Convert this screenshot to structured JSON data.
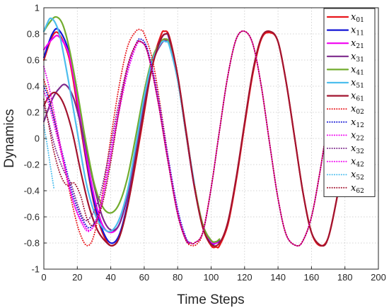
{
  "chart_data": {
    "type": "line",
    "title": "",
    "xlabel": "Time Steps",
    "ylabel": "Dynamics",
    "xlim": [
      0,
      200
    ],
    "ylim": [
      -1,
      1
    ],
    "xticks": [
      0,
      20,
      40,
      60,
      80,
      100,
      120,
      140,
      160,
      180,
      200
    ],
    "yticks": [
      -1,
      -0.8,
      -0.6,
      -0.4,
      -0.2,
      0,
      0.2,
      0.4,
      0.6,
      0.8,
      1
    ],
    "xtick_labels": [
      "0",
      "20",
      "40",
      "60",
      "80",
      "100",
      "120",
      "140",
      "160",
      "180",
      "200"
    ],
    "ytick_labels": [
      "-1",
      "-0.8",
      "-0.6",
      "-0.4",
      "-0.2",
      "0",
      "0.2",
      "0.4",
      "0.6",
      "0.8",
      "1"
    ],
    "grid": true,
    "legend_position": "top-right",
    "series": [
      {
        "name": "x01",
        "base": "x",
        "sub": "01",
        "color": "#e8161b",
        "style": "solid",
        "x": [
          0,
          5,
          9,
          15,
          20,
          25,
          30,
          35,
          40,
          45,
          50,
          55,
          60,
          65,
          70,
          72,
          75,
          80,
          85,
          90,
          95,
          100,
          103,
          105,
          110,
          115,
          120,
          125,
          130,
          135,
          140,
          145,
          150,
          155,
          160,
          165,
          170,
          175,
          180
        ],
        "y": [
          0.6,
          0.78,
          0.8,
          0.62,
          0.25,
          -0.15,
          -0.5,
          -0.72,
          -0.82,
          -0.76,
          -0.52,
          -0.18,
          0.2,
          0.58,
          0.79,
          0.82,
          0.78,
          0.48,
          0.06,
          -0.36,
          -0.68,
          -0.82,
          -0.83,
          -0.82,
          -0.66,
          -0.32,
          0.1,
          0.5,
          0.76,
          0.81,
          0.74,
          0.42,
          0.0,
          -0.42,
          -0.72,
          -0.82,
          -0.76,
          -0.47,
          -0.1
        ]
      },
      {
        "name": "x11",
        "base": "x",
        "sub": "11",
        "color": "#1316d6",
        "style": "solid",
        "x": [
          0,
          5,
          9,
          15,
          20,
          25,
          30,
          35,
          40,
          45,
          50,
          55,
          60,
          65,
          70,
          73,
          75,
          80,
          85,
          90,
          95,
          100,
          103,
          105
        ],
        "y": [
          0.62,
          0.8,
          0.83,
          0.66,
          0.3,
          -0.12,
          -0.48,
          -0.7,
          -0.8,
          -0.74,
          -0.5,
          -0.14,
          0.24,
          0.58,
          0.76,
          0.8,
          0.76,
          0.46,
          0.04,
          -0.37,
          -0.67,
          -0.8,
          -0.8,
          -0.79
        ]
      },
      {
        "name": "x21",
        "base": "x",
        "sub": "21",
        "color": "#f000f0",
        "style": "solid",
        "x": [
          0,
          5,
          9,
          15,
          20,
          25,
          30,
          35,
          40,
          45,
          50,
          55,
          60,
          65,
          70,
          73,
          75,
          80,
          85,
          90,
          95,
          100,
          103,
          105
        ],
        "y": [
          0.68,
          0.76,
          0.78,
          0.64,
          0.3,
          -0.1,
          -0.44,
          -0.66,
          -0.72,
          -0.66,
          -0.44,
          -0.1,
          0.28,
          0.58,
          0.73,
          0.76,
          0.72,
          0.45,
          0.04,
          -0.37,
          -0.66,
          -0.79,
          -0.8,
          -0.78
        ]
      },
      {
        "name": "x31",
        "base": "x",
        "sub": "31",
        "color": "#7d2a8c",
        "style": "solid",
        "x": [
          0,
          5,
          9,
          13,
          18,
          24,
          30,
          35,
          40,
          45,
          50,
          55,
          60,
          65,
          70,
          73,
          75,
          80,
          85,
          90,
          95,
          100,
          103,
          105
        ],
        "y": [
          0.13,
          0.3,
          0.38,
          0.41,
          0.3,
          0.0,
          -0.36,
          -0.6,
          -0.7,
          -0.66,
          -0.44,
          -0.1,
          0.28,
          0.58,
          0.72,
          0.75,
          0.72,
          0.46,
          0.05,
          -0.36,
          -0.66,
          -0.78,
          -0.79,
          -0.78
        ]
      },
      {
        "name": "x41",
        "base": "x",
        "sub": "41",
        "color": "#72ac2e",
        "style": "solid",
        "x": [
          0,
          3,
          7,
          11,
          15,
          20,
          25,
          30,
          35,
          40,
          45,
          50,
          55,
          60,
          65,
          70,
          73,
          75,
          80,
          85,
          90,
          95,
          100,
          103,
          105
        ],
        "y": [
          0.82,
          0.88,
          0.93,
          0.88,
          0.7,
          0.36,
          -0.02,
          -0.34,
          -0.52,
          -0.57,
          -0.5,
          -0.3,
          0.02,
          0.36,
          0.62,
          0.74,
          0.76,
          0.72,
          0.45,
          0.04,
          -0.36,
          -0.66,
          -0.78,
          -0.79,
          -0.77
        ]
      },
      {
        "name": "x51",
        "base": "x",
        "sub": "51",
        "color": "#4dbeee",
        "style": "solid",
        "x": [
          0,
          2,
          4,
          7,
          10,
          15,
          20,
          25,
          30,
          35,
          40,
          45,
          50,
          55,
          60,
          65,
          70,
          73,
          75,
          80,
          85,
          90
        ],
        "y": [
          0.82,
          0.88,
          0.92,
          0.88,
          0.76,
          0.42,
          0.05,
          -0.32,
          -0.56,
          -0.68,
          -0.71,
          -0.62,
          -0.4,
          -0.05,
          0.32,
          0.6,
          0.73,
          0.74,
          0.71,
          0.45,
          0.04,
          -0.35
        ]
      },
      {
        "name": "x61",
        "base": "x",
        "sub": "61",
        "color": "#a2142f",
        "style": "solid",
        "x": [
          0,
          3,
          7,
          12,
          17,
          22,
          27,
          32,
          37,
          41,
          45,
          50,
          55,
          60,
          65,
          70,
          73,
          75,
          80,
          85,
          90,
          95,
          100,
          105,
          110,
          115,
          120,
          125,
          130,
          135,
          140,
          145,
          150,
          155,
          160,
          166,
          170,
          175,
          180
        ],
        "y": [
          0.25,
          0.32,
          0.35,
          0.26,
          0.05,
          -0.25,
          -0.52,
          -0.7,
          -0.79,
          -0.82,
          -0.76,
          -0.52,
          -0.16,
          0.22,
          0.56,
          0.76,
          0.8,
          0.77,
          0.48,
          0.05,
          -0.37,
          -0.68,
          -0.81,
          -0.8,
          -0.64,
          -0.3,
          0.12,
          0.52,
          0.77,
          0.82,
          0.74,
          0.42,
          0.0,
          -0.42,
          -0.72,
          -0.82,
          -0.76,
          -0.47,
          -0.1
        ]
      },
      {
        "name": "x02",
        "base": "x",
        "sub": "02",
        "color": "#e8161b",
        "style": "dotted",
        "x": [
          0,
          3,
          7,
          12,
          18,
          22,
          26,
          30,
          35,
          40,
          45,
          50,
          55,
          58,
          60,
          65,
          70,
          75,
          80,
          85,
          89,
          92,
          95,
          100,
          105,
          110,
          115,
          120,
          125,
          130,
          135,
          140,
          145,
          151,
          155,
          160,
          165,
          170
        ],
        "y": [
          0.45,
          0.32,
          0.1,
          -0.2,
          -0.56,
          -0.74,
          -0.82,
          -0.74,
          -0.42,
          0.0,
          0.4,
          0.7,
          0.82,
          0.83,
          0.8,
          0.6,
          0.22,
          -0.2,
          -0.56,
          -0.78,
          -0.82,
          -0.8,
          -0.72,
          -0.38,
          0.06,
          0.48,
          0.76,
          0.82,
          0.72,
          0.4,
          -0.04,
          -0.46,
          -0.74,
          -0.82,
          -0.78,
          -0.6,
          -0.26,
          0.15
        ]
      },
      {
        "name": "x12",
        "base": "x",
        "sub": "12",
        "color": "#1316d6",
        "style": "dotted",
        "x": [
          0,
          3,
          7,
          12,
          18,
          24,
          28,
          33,
          38,
          44,
          50,
          55,
          58,
          62,
          68,
          74,
          80,
          85,
          88
        ],
        "y": [
          0.4,
          0.3,
          0.1,
          -0.16,
          -0.46,
          -0.64,
          -0.68,
          -0.56,
          -0.26,
          0.16,
          0.52,
          0.72,
          0.76,
          0.68,
          0.34,
          -0.12,
          -0.54,
          -0.76,
          -0.8
        ]
      },
      {
        "name": "x22",
        "base": "x",
        "sub": "22",
        "color": "#f000f0",
        "style": "dotted",
        "x": [
          0,
          3,
          7,
          12,
          18,
          24,
          28,
          33,
          38,
          44,
          50,
          55,
          58,
          62,
          68,
          74,
          80,
          85,
          88
        ],
        "y": [
          0.36,
          0.26,
          0.06,
          -0.2,
          -0.5,
          -0.66,
          -0.7,
          -0.58,
          -0.28,
          0.14,
          0.5,
          0.7,
          0.74,
          0.66,
          0.32,
          -0.14,
          -0.56,
          -0.77,
          -0.8
        ]
      },
      {
        "name": "x32",
        "base": "x",
        "sub": "32",
        "color": "#7d2a8c",
        "style": "dotted",
        "x": [
          0,
          3,
          7,
          12,
          16,
          20,
          24,
          28,
          33,
          38,
          44,
          50,
          55,
          58,
          62,
          68,
          74,
          80,
          85,
          88
        ],
        "y": [
          0.25,
          0.12,
          -0.08,
          -0.25,
          -0.34,
          -0.5,
          -0.62,
          -0.6,
          -0.46,
          -0.18,
          0.22,
          0.55,
          0.72,
          0.74,
          0.66,
          0.3,
          -0.16,
          -0.57,
          -0.77,
          -0.8
        ]
      },
      {
        "name": "x42",
        "base": "x",
        "sub": "42",
        "color": "#f000f0",
        "style": "dotted",
        "x": [
          0,
          3,
          7,
          12,
          18,
          24,
          28,
          33,
          38,
          44,
          50,
          55,
          58,
          62,
          68,
          74,
          80,
          85,
          88,
          90,
          95,
          100,
          105,
          110,
          115,
          120,
          125,
          130,
          135,
          140,
          145,
          151,
          155,
          160,
          165,
          170
        ],
        "y": [
          0.55,
          0.4,
          0.14,
          -0.18,
          -0.5,
          -0.68,
          -0.7,
          -0.56,
          -0.24,
          0.18,
          0.54,
          0.72,
          0.74,
          0.66,
          0.3,
          -0.16,
          -0.58,
          -0.78,
          -0.8,
          -0.8,
          -0.72,
          -0.38,
          0.06,
          0.48,
          0.76,
          0.82,
          0.72,
          0.4,
          -0.04,
          -0.46,
          -0.74,
          -0.82,
          -0.78,
          -0.6,
          -0.26,
          0.15
        ]
      },
      {
        "name": "x52",
        "base": "x",
        "sub": "52",
        "color": "#4dbeee",
        "style": "dotted",
        "x": [
          0,
          2,
          4,
          6
        ],
        "y": [
          0.1,
          -0.05,
          -0.22,
          -0.38
        ]
      },
      {
        "name": "x62",
        "base": "x",
        "sub": "62",
        "color": "#a2142f",
        "style": "dotted",
        "x": [
          0,
          3,
          6,
          10,
          14,
          18,
          22,
          26,
          30,
          35,
          40,
          45,
          50,
          55,
          58,
          62,
          68,
          74,
          80,
          85,
          88,
          90,
          95,
          100,
          105,
          110,
          115,
          120,
          125,
          130,
          135,
          140,
          145,
          151,
          155,
          160,
          165,
          170
        ],
        "y": [
          0.3,
          0.1,
          -0.1,
          -0.28,
          -0.36,
          -0.34,
          -0.44,
          -0.62,
          -0.66,
          -0.5,
          -0.18,
          0.22,
          0.55,
          0.72,
          0.74,
          0.66,
          0.3,
          -0.16,
          -0.58,
          -0.78,
          -0.8,
          -0.8,
          -0.72,
          -0.38,
          0.06,
          0.48,
          0.76,
          0.82,
          0.72,
          0.4,
          -0.04,
          -0.46,
          -0.74,
          -0.82,
          -0.78,
          -0.6,
          -0.26,
          0.15
        ]
      }
    ]
  }
}
